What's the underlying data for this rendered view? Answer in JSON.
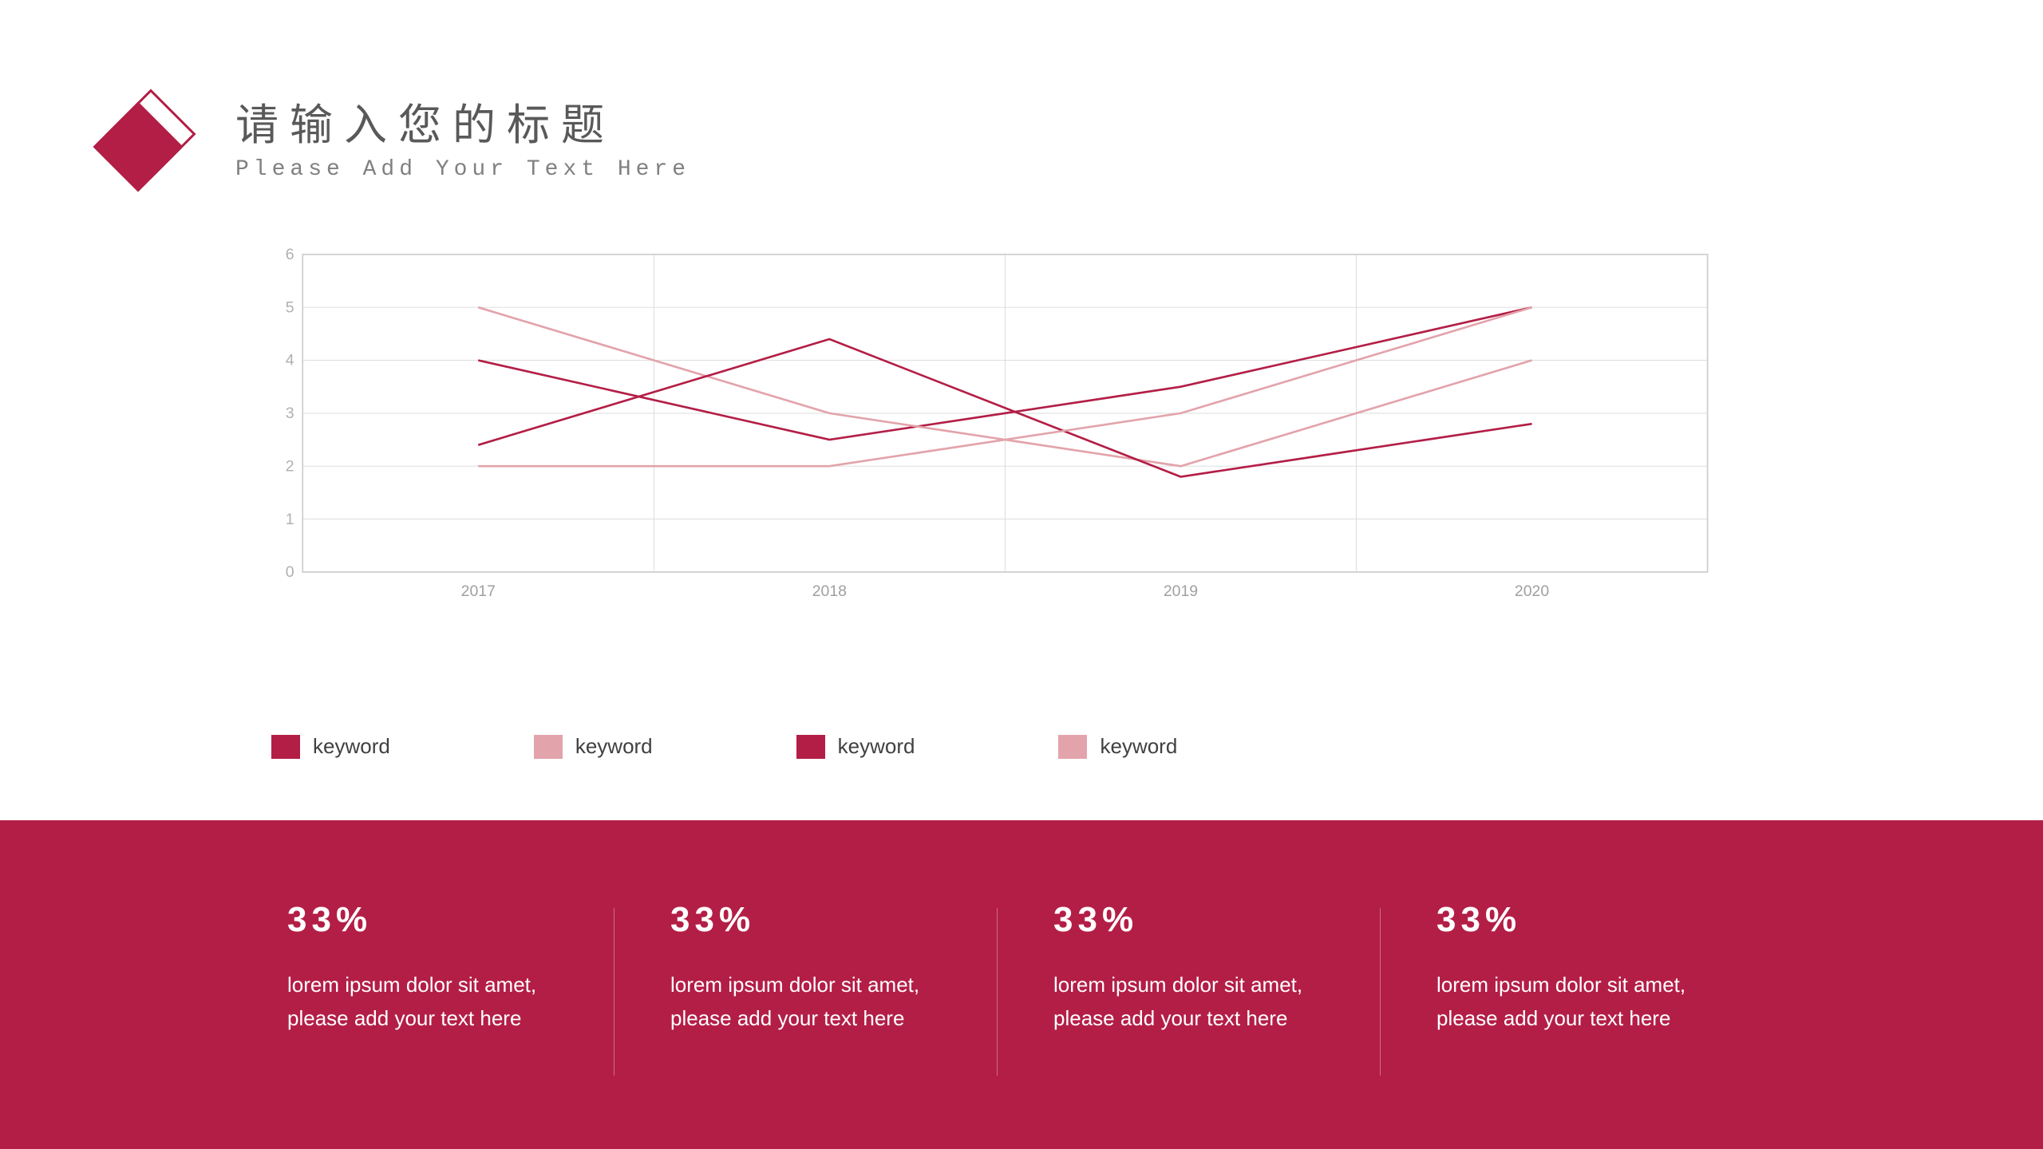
{
  "header": {
    "title_cn": "请输入您的标题",
    "title_en": "Please Add Your Text Here",
    "logo_color": "#b31e46"
  },
  "chart": {
    "type": "line",
    "plot_bg": "#ffffff",
    "border_color": "#cfcfcf",
    "grid_color": "#d9d9d9",
    "tick_color": "#a0a0a0",
    "ylim": [
      0,
      6
    ],
    "yticks": [
      0,
      1,
      2,
      3,
      4,
      5,
      6
    ],
    "categories": [
      "2017",
      "2018",
      "2019",
      "2020"
    ],
    "line_width": 3,
    "series": [
      {
        "name": "keyword",
        "color": "#b31e46",
        "values": [
          4.0,
          2.5,
          3.5,
          5.0
        ]
      },
      {
        "name": "keyword",
        "color": "#e3a3ab",
        "values": [
          5.0,
          3.0,
          2.0,
          4.0
        ]
      },
      {
        "name": "keyword",
        "color": "#b31e46",
        "values": [
          2.4,
          4.4,
          1.8,
          2.8
        ]
      },
      {
        "name": "keyword",
        "color": "#e3a3ab",
        "values": [
          2.0,
          2.0,
          3.0,
          5.0
        ]
      }
    ]
  },
  "legend": {
    "items": [
      {
        "color": "#b31e46",
        "label": "keyword"
      },
      {
        "color": "#e3a3ab",
        "label": "keyword"
      },
      {
        "color": "#b31e46",
        "label": "keyword"
      },
      {
        "color": "#e3a3ab",
        "label": "keyword"
      }
    ]
  },
  "footer": {
    "bg": "#b31e46",
    "stats": [
      {
        "value": "33%",
        "desc": "lorem ipsum dolor sit amet, please add your text here"
      },
      {
        "value": "33%",
        "desc": "lorem ipsum dolor sit amet, please add your text here"
      },
      {
        "value": "33%",
        "desc": "lorem ipsum dolor sit amet, please add your text here"
      },
      {
        "value": "33%",
        "desc": "lorem ipsum dolor sit amet, please add your text here"
      }
    ]
  }
}
